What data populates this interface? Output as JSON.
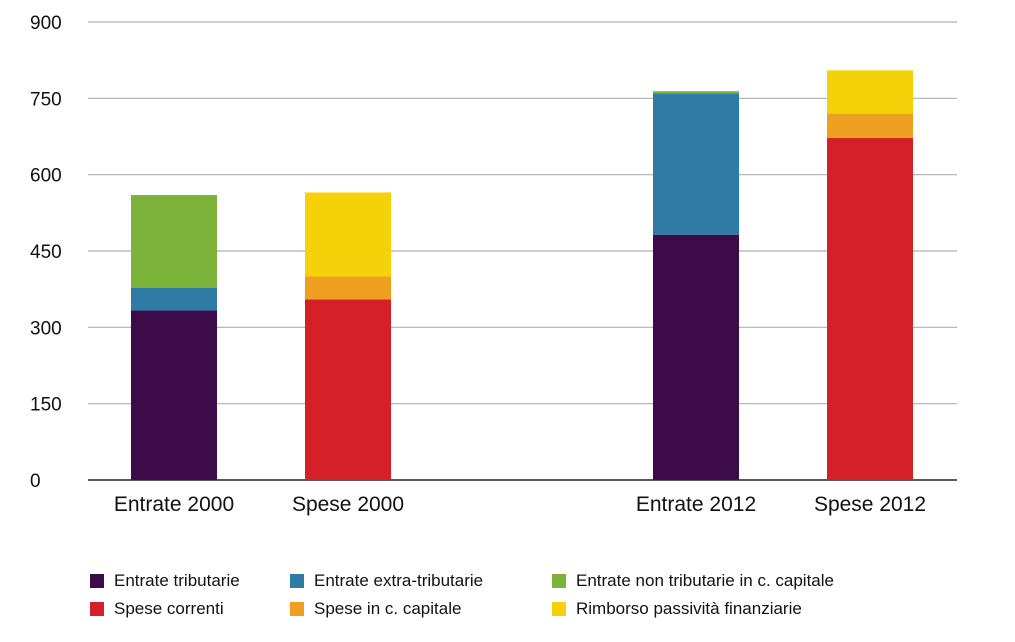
{
  "chart_data": {
    "type": "bar",
    "stacked": true,
    "categories": [
      "Entrate 2000",
      "Spese 2000",
      "Entrate 2012",
      "Spese 2012"
    ],
    "ylim": [
      0,
      900
    ],
    "yticks": [
      0,
      150,
      300,
      450,
      600,
      750,
      900
    ],
    "grid": true,
    "legend_position": "bottom",
    "series": [
      {
        "name": "Entrate tributarie",
        "color": "#3d0a4a",
        "values": [
          333,
          0,
          482,
          0
        ]
      },
      {
        "name": "Entrate extra-tributarie",
        "color": "#2e7ca6",
        "values": [
          45,
          0,
          278,
          0
        ]
      },
      {
        "name": "Entrate non tributarie in c. capitale",
        "color": "#7db33a",
        "values": [
          182,
          0,
          4,
          0
        ]
      },
      {
        "name": "Spese correnti",
        "color": "#d42026",
        "values": [
          0,
          355,
          0,
          672
        ]
      },
      {
        "name": "Spese in c. capitale",
        "color": "#f0a020",
        "values": [
          0,
          45,
          0,
          48
        ]
      },
      {
        "name": "Rimborso passività finanziarie",
        "color": "#f5d10a",
        "values": [
          0,
          165,
          0,
          85
        ]
      }
    ]
  }
}
